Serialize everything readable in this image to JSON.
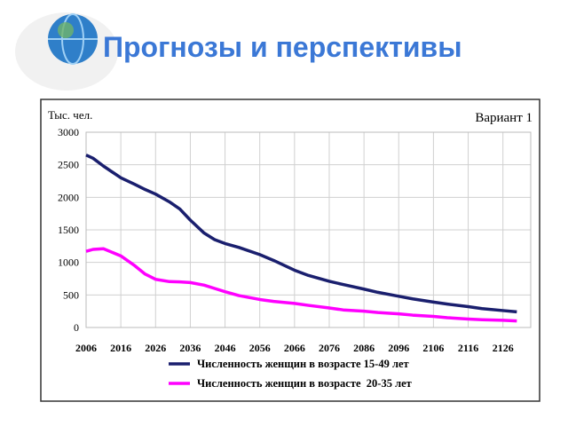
{
  "chart_data": {
    "type": "line",
    "title": "Прогнозы и перспективы",
    "y_label": "Тыс. чел.",
    "annotation": "Вариант 1",
    "x": [
      2006,
      2008,
      2011,
      2016,
      2020,
      2023,
      2026,
      2030,
      2033,
      2036,
      2040,
      2043,
      2046,
      2050,
      2056,
      2060,
      2066,
      2070,
      2076,
      2080,
      2086,
      2090,
      2096,
      2100,
      2106,
      2110,
      2116,
      2120,
      2126,
      2130
    ],
    "series": [
      {
        "name": "Численность женщин в возрасте 15-49 лет",
        "color": "#1a1f6e",
        "values": [
          2650,
          2600,
          2480,
          2300,
          2200,
          2120,
          2050,
          1930,
          1820,
          1650,
          1450,
          1350,
          1290,
          1230,
          1120,
          1030,
          880,
          800,
          710,
          660,
          590,
          540,
          480,
          440,
          390,
          360,
          320,
          290,
          260,
          240
        ]
      },
      {
        "name": "Численность женщин в возрасте  20-35 лет",
        "color": "#ff00ff",
        "values": [
          1170,
          1200,
          1210,
          1100,
          950,
          820,
          740,
          705,
          700,
          690,
          650,
          600,
          550,
          490,
          430,
          400,
          370,
          340,
          300,
          270,
          250,
          230,
          210,
          190,
          170,
          150,
          130,
          120,
          110,
          100
        ]
      }
    ],
    "xlim": [
      2006,
      2134
    ],
    "xticks": [
      2006,
      2016,
      2026,
      2036,
      2046,
      2056,
      2066,
      2076,
      2086,
      2096,
      2106,
      2116,
      2126
    ],
    "ylim": [
      0,
      3000
    ],
    "yticks": [
      0,
      500,
      1000,
      1500,
      2000,
      2500,
      3000
    ],
    "grid": true
  }
}
